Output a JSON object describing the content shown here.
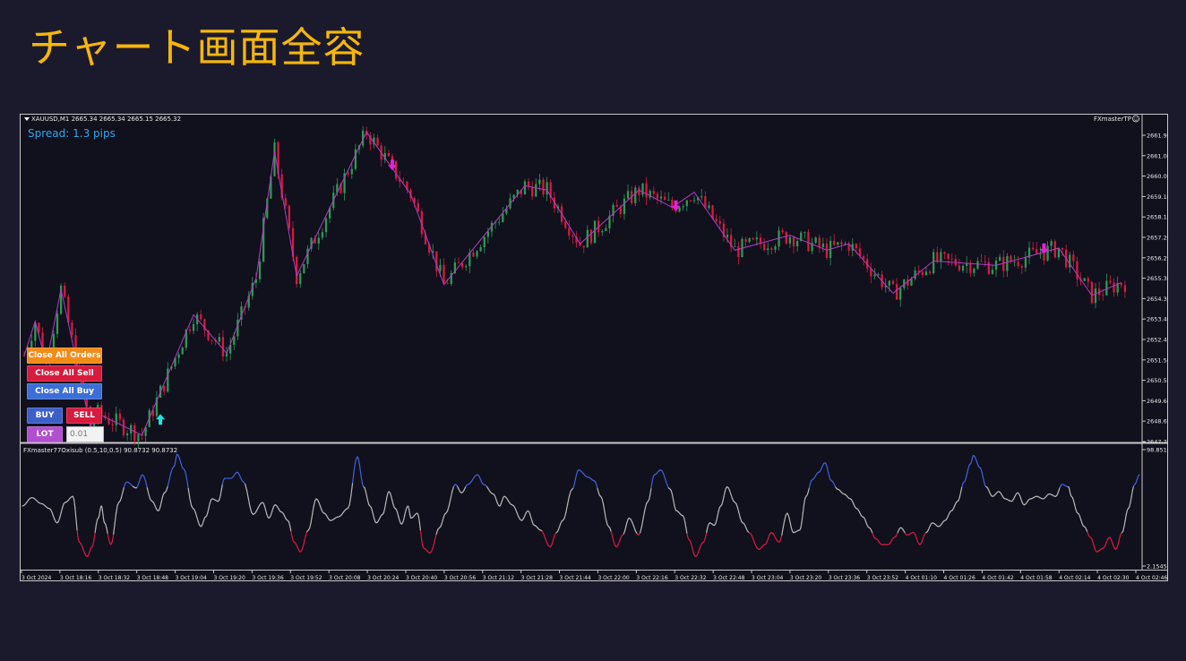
{
  "slide": {
    "title": "チャート画面全容"
  },
  "chart_header": {
    "symbol_line": "XAUUSD,M1  2665.34 2665.34 2665.15 2665.32",
    "spread": "Spread: 1.3 pips",
    "ea_name": "FXmasterTP",
    "indicator_line": "FXmaster77Oxisub (0.5,10,0.5) 90.8732 90.8732"
  },
  "trade_panel": {
    "close_all_orders": "Close All Orders",
    "close_all_sell": "Close All Sell",
    "close_all_buy": "Close All Buy",
    "buy": "BUY",
    "sell": "SELL",
    "lot": "LOT",
    "lot_value": "0.01"
  },
  "colors": {
    "background": "#11101d",
    "bull": "#2e9a55",
    "bear": "#d61b3e",
    "zigzag": "#b33cc2",
    "sell_arrow": "#e81fd0",
    "buy_arrow": "#22e3e3",
    "osc_mid": "#b6b6b6",
    "osc_high": "#3f63d9",
    "osc_low": "#d61b3e",
    "orders_button": "#f28c18",
    "sell_button": "#d61b3e",
    "buy_button": "#3c6ed6",
    "lot_button": "#b24fd0"
  },
  "chart_data": [
    {
      "type": "line",
      "name": "price",
      "y_ticks": [
        "2661.95",
        "2661.00",
        "2660.05",
        "2659.10",
        "2658.15",
        "2657.20",
        "2656.25",
        "2655.30",
        "2654.35",
        "2653.40",
        "2652.45",
        "2651.50",
        "2650.55",
        "2649.60",
        "2648.65",
        "2647.70"
      ],
      "ylim": [
        2647.7,
        2662.4
      ],
      "x_ticks": [
        "3 Oct 2024",
        "3 Oct 18:16",
        "3 Oct 18:32",
        "3 Oct 18:48",
        "3 Oct 19:04",
        "3 Oct 19:20",
        "3 Oct 19:36",
        "3 Oct 19:52",
        "3 Oct 20:08",
        "3 Oct 20:24",
        "3 Oct 20:40",
        "3 Oct 20:56",
        "3 Oct 21:12",
        "3 Oct 21:28",
        "3 Oct 21:44",
        "3 Oct 22:00",
        "3 Oct 22:16",
        "3 Oct 22:32",
        "3 Oct 22:48",
        "3 Oct 23:04",
        "3 Oct 23:20",
        "3 Oct 23:36",
        "3 Oct 23:52",
        "4 Oct 01:10",
        "4 Oct 01:26",
        "4 Oct 01:42",
        "4 Oct 01:58",
        "4 Oct 02:14",
        "4 Oct 02:30",
        "4 Oct 02:46"
      ],
      "zigzag": [
        [
          0,
          2651.7
        ],
        [
          3,
          2653.3
        ],
        [
          6,
          2651.3
        ],
        [
          10,
          2654.8
        ],
        [
          18,
          2648.4
        ],
        [
          20,
          2649.0
        ],
        [
          32,
          2648.0
        ],
        [
          46,
          2653.6
        ],
        [
          55,
          2651.8
        ],
        [
          63,
          2655.3
        ],
        [
          68,
          2661.2
        ],
        [
          74,
          2655.4
        ],
        [
          93,
          2662.1
        ],
        [
          105,
          2659.2
        ],
        [
          114,
          2655.0
        ],
        [
          136,
          2659.6
        ],
        [
          142,
          2659.4
        ],
        [
          151,
          2656.9
        ],
        [
          167,
          2659.4
        ],
        [
          176,
          2658.6
        ],
        [
          182,
          2659.3
        ],
        [
          193,
          2656.6
        ],
        [
          208,
          2657.3
        ],
        [
          218,
          2656.6
        ],
        [
          224,
          2656.9
        ],
        [
          236,
          2654.6
        ],
        [
          247,
          2656.1
        ],
        [
          264,
          2655.9
        ],
        [
          281,
          2656.7
        ],
        [
          290,
          2654.5
        ],
        [
          298,
          2655.1
        ]
      ],
      "sell_arrows": [
        [
          100,
          2660.4
        ],
        [
          177,
          2658.5
        ],
        [
          277,
          2656.5
        ]
      ],
      "buy_arrows": [
        [
          37,
          2648.9
        ]
      ]
    },
    {
      "type": "line",
      "name": "FXmaster77Oxisub",
      "y_ticks": [
        "98.8518",
        "2.1545"
      ],
      "ylim": [
        2.1545,
        98.8518
      ],
      "high_threshold": 68,
      "low_threshold": 30,
      "series": [
        [
          0,
          52
        ],
        [
          6,
          59
        ],
        [
          12,
          54
        ],
        [
          17,
          50
        ],
        [
          22,
          38
        ],
        [
          27,
          55
        ],
        [
          32,
          60
        ],
        [
          36,
          22
        ],
        [
          41,
          10
        ],
        [
          44,
          18
        ],
        [
          48,
          42
        ],
        [
          50,
          52
        ],
        [
          52,
          38
        ],
        [
          56,
          20
        ],
        [
          61,
          55
        ],
        [
          66,
          72
        ],
        [
          72,
          67
        ],
        [
          76,
          78
        ],
        [
          82,
          56
        ],
        [
          86,
          48
        ],
        [
          90,
          63
        ],
        [
          96,
          85
        ],
        [
          98,
          95
        ],
        [
          102,
          83
        ],
        [
          108,
          50
        ],
        [
          113,
          35
        ],
        [
          116,
          43
        ],
        [
          120,
          58
        ],
        [
          124,
          56
        ],
        [
          128,
          75
        ],
        [
          132,
          75
        ],
        [
          136,
          80
        ],
        [
          140,
          72
        ],
        [
          146,
          45
        ],
        [
          152,
          55
        ],
        [
          156,
          42
        ],
        [
          160,
          53
        ],
        [
          164,
          47
        ],
        [
          168,
          40
        ],
        [
          172,
          22
        ],
        [
          176,
          14
        ],
        [
          181,
          32
        ],
        [
          186,
          58
        ],
        [
          191,
          46
        ],
        [
          195,
          40
        ],
        [
          200,
          43
        ],
        [
          206,
          50
        ],
        [
          212,
          93
        ],
        [
          216,
          68
        ],
        [
          220,
          52
        ],
        [
          224,
          38
        ],
        [
          228,
          45
        ],
        [
          232,
          64
        ],
        [
          236,
          50
        ],
        [
          240,
          37
        ],
        [
          244,
          52
        ],
        [
          246,
          42
        ],
        [
          250,
          46
        ],
        [
          254,
          17
        ],
        [
          258,
          13
        ],
        [
          264,
          34
        ],
        [
          268,
          46
        ],
        [
          274,
          70
        ],
        [
          278,
          63
        ],
        [
          282,
          70
        ],
        [
          288,
          78
        ],
        [
          292,
          70
        ],
        [
          298,
          62
        ],
        [
          302,
          52
        ],
        [
          305,
          60
        ],
        [
          310,
          53
        ],
        [
          316,
          40
        ],
        [
          320,
          48
        ],
        [
          324,
          36
        ],
        [
          328,
          32
        ],
        [
          334,
          18
        ],
        [
          338,
          30
        ],
        [
          342,
          40
        ],
        [
          348,
          66
        ],
        [
          352,
          82
        ],
        [
          358,
          76
        ],
        [
          362,
          73
        ],
        [
          366,
          60
        ],
        [
          371,
          35
        ],
        [
          376,
          18
        ],
        [
          380,
          28
        ],
        [
          384,
          42
        ],
        [
          390,
          28
        ],
        [
          396,
          56
        ],
        [
          400,
          78
        ],
        [
          404,
          82
        ],
        [
          410,
          66
        ],
        [
          414,
          48
        ],
        [
          418,
          44
        ],
        [
          422,
          24
        ],
        [
          426,
          10
        ],
        [
          431,
          22
        ],
        [
          435,
          38
        ],
        [
          438,
          36
        ],
        [
          442,
          52
        ],
        [
          446,
          68
        ],
        [
          451,
          55
        ],
        [
          456,
          38
        ],
        [
          460,
          30
        ],
        [
          466,
          16
        ],
        [
          470,
          20
        ],
        [
          474,
          30
        ],
        [
          479,
          22
        ],
        [
          484,
          46
        ],
        [
          488,
          30
        ],
        [
          492,
          32
        ],
        [
          496,
          60
        ],
        [
          500,
          74
        ],
        [
          504,
          80
        ],
        [
          508,
          88
        ],
        [
          512,
          73
        ],
        [
          516,
          66
        ],
        [
          520,
          62
        ],
        [
          524,
          58
        ],
        [
          528,
          50
        ],
        [
          532,
          43
        ],
        [
          536,
          34
        ],
        [
          540,
          25
        ],
        [
          544,
          20
        ],
        [
          548,
          20
        ],
        [
          552,
          26
        ],
        [
          556,
          34
        ],
        [
          560,
          28
        ],
        [
          564,
          30
        ],
        [
          568,
          20
        ],
        [
          572,
          30
        ],
        [
          576,
          38
        ],
        [
          580,
          35
        ],
        [
          584,
          40
        ],
        [
          588,
          48
        ],
        [
          592,
          56
        ],
        [
          596,
          72
        ],
        [
          600,
          87
        ],
        [
          602,
          94
        ],
        [
          606,
          84
        ],
        [
          610,
          68
        ],
        [
          614,
          60
        ],
        [
          618,
          64
        ],
        [
          622,
          58
        ],
        [
          626,
          56
        ],
        [
          630,
          63
        ],
        [
          634,
          53
        ],
        [
          638,
          58
        ],
        [
          642,
          60
        ],
        [
          646,
          58
        ],
        [
          650,
          62
        ],
        [
          654,
          60
        ],
        [
          658,
          70
        ],
        [
          662,
          68
        ],
        [
          664,
          60
        ],
        [
          668,
          46
        ],
        [
          672,
          35
        ],
        [
          676,
          26
        ],
        [
          680,
          14
        ],
        [
          684,
          17
        ],
        [
          688,
          26
        ],
        [
          692,
          16
        ],
        [
          696,
          30
        ],
        [
          700,
          50
        ],
        [
          704,
          70
        ],
        [
          707,
          78
        ]
      ]
    }
  ]
}
